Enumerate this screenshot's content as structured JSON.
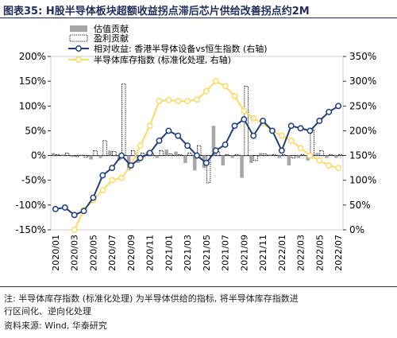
{
  "header": {
    "title": "图表35:  H股半导体板块超额收益拐点滞后芯片供给改善拐点约2M"
  },
  "colors": {
    "valuation_bar": "#a6a6a6",
    "profit_bar_fill": "#ffffff",
    "profit_bar_stroke": "#000000",
    "relative_line": "#1f3e7a",
    "inventory_line": "#ffd966",
    "title_color": "#1f2d5a"
  },
  "chart_data": {
    "type": "bar",
    "categories": [
      "2020/01",
      "2020/02",
      "2020/03",
      "2020/04",
      "2020/05",
      "2020/06",
      "2020/07",
      "2020/08",
      "2020/09",
      "2020/10",
      "2020/11",
      "2020/12",
      "2021/01",
      "2021/02",
      "2021/03",
      "2021/04",
      "2021/05",
      "2021/06",
      "2021/07",
      "2021/08",
      "2021/09",
      "2021/10",
      "2021/11",
      "2021/12",
      "2022/01",
      "2022/02",
      "2022/03",
      "2022/04",
      "2022/05",
      "2022/06",
      "2022/07"
    ],
    "x_tick_labels": [
      "2020/01",
      "2020/03",
      "2020/05",
      "2020/07",
      "2020/09",
      "2020/11",
      "2021/01",
      "2021/03",
      "2021/05",
      "2021/07",
      "2021/09",
      "2021/11",
      "2022/01",
      "2022/03",
      "2022/05",
      "2022/07"
    ],
    "left_axis": {
      "ylim": [
        -150,
        200
      ],
      "ticks": [
        -150,
        -100,
        -50,
        0,
        50,
        100,
        150,
        200
      ],
      "tick_labels": [
        "-150%",
        "-100%",
        "-50%",
        "0%",
        "50%",
        "100%",
        "150%",
        "200%"
      ]
    },
    "right_axis": {
      "ylim": [
        0,
        350
      ],
      "ticks": [
        0,
        50,
        100,
        150,
        200,
        250,
        300,
        350
      ],
      "tick_labels": [
        "0%",
        "50%",
        "100%",
        "150%",
        "200%",
        "250%",
        "300%",
        "350%"
      ]
    },
    "legend": {
      "placement": "top-left",
      "entries": [
        "估值贡献",
        "盈利贡献",
        "相对收益: 香港半导体设备vs恒生指数 (右轴)",
        "半导体库存指数 (标准化处理, 右轴)"
      ]
    },
    "series": [
      {
        "name": "估值贡献",
        "axis": "left",
        "kind": "bar",
        "values": [
          5,
          2,
          -3,
          2,
          -8,
          -5,
          10,
          -10,
          -30,
          -15,
          8,
          -5,
          12,
          8,
          -15,
          -30,
          -25,
          60,
          -20,
          -5,
          -45,
          -15,
          5,
          2,
          -5,
          -20,
          -5,
          -10,
          5,
          -5,
          -5
        ]
      },
      {
        "name": "盈利贡献",
        "axis": "left",
        "kind": "bar",
        "values": [
          2,
          5,
          -2,
          -3,
          10,
          30,
          8,
          145,
          10,
          5,
          5,
          10,
          3,
          2,
          5,
          20,
          -55,
          8,
          2,
          2,
          140,
          -10,
          3,
          2,
          2,
          -5,
          2,
          52,
          10,
          2,
          2
        ]
      },
      {
        "name": "相对收益: 香港半导体设备vs恒生指数 (右轴)",
        "axis": "right",
        "kind": "line",
        "values": [
          42,
          45,
          30,
          38,
          65,
          110,
          125,
          150,
          130,
          145,
          155,
          180,
          200,
          190,
          170,
          150,
          135,
          160,
          172,
          210,
          223,
          190,
          220,
          200,
          160,
          210,
          205,
          200,
          220,
          238,
          250
        ]
      },
      {
        "name": "半导体库存指数 (标准化处理, 右轴)",
        "axis": "right",
        "kind": "line",
        "values": [
          null,
          null,
          0,
          40,
          60,
          80,
          100,
          105,
          130,
          170,
          210,
          260,
          262,
          260,
          260,
          263,
          280,
          300,
          290,
          270,
          240,
          225,
          215,
          200,
          190,
          180,
          165,
          150,
          140,
          130,
          125
        ]
      }
    ]
  },
  "footer": {
    "note_line1": "注: 半导体库存指数 (标准化处理) 为半导体供给的指标, 将半导体库存指数进",
    "note_line2": "行区间化、逆向化处理",
    "source": "资料来源: Wind, 华泰研究"
  }
}
